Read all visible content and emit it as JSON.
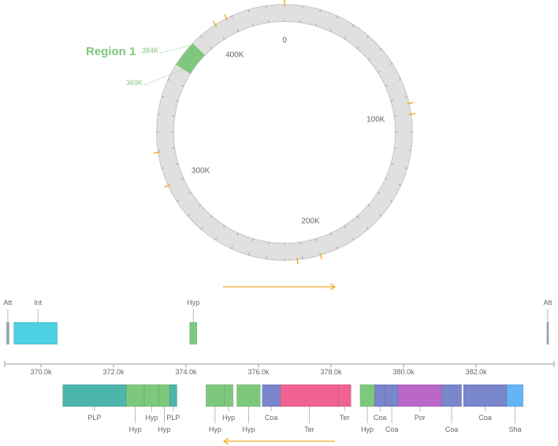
{
  "circular_map": {
    "ring_color": "#e0e0e0",
    "ring_stroke": "#bbbbbb",
    "tick_color": "#999999",
    "orange_tick_color": "#f5a623",
    "total_k": 440,
    "labels": [
      {
        "text": "0",
        "k": 0
      },
      {
        "text": "100K",
        "k": 100
      },
      {
        "text": "200K",
        "k": 200
      },
      {
        "text": "300K",
        "k": 300
      },
      {
        "text": "400K",
        "k": 400
      }
    ],
    "orange_ticks_k": [
      0,
      100,
      200,
      300,
      400,
      94,
      213,
      319,
      407
    ],
    "region": {
      "title": "Region 1",
      "color": "#7ec87e",
      "start_label": "369K",
      "end_label": "384K",
      "start_k": 369,
      "end_k": 384
    }
  },
  "strand_arrow_color": "#f5a623",
  "top_track": {
    "genes": [
      {
        "label": "Att",
        "start": 369.05,
        "end": 369.12,
        "color": "#8fa9b6"
      },
      {
        "label": "",
        "start": 369.25,
        "end": 370.45,
        "color": "#4dd0e1"
      },
      {
        "label": "Int",
        "start": 369.9,
        "end": 369.9,
        "color": "none"
      },
      {
        "label": "Hyp",
        "start": 374.1,
        "end": 374.3,
        "color": "#7ec87e"
      },
      {
        "label": "Att",
        "start": 383.95,
        "end": 384.0,
        "color": "#8fa9b6"
      }
    ]
  },
  "axis": {
    "domain": [
      369.0,
      384.15
    ],
    "ticks": [
      {
        "label": "370.0k",
        "v": 370.0
      },
      {
        "label": "372.0k",
        "v": 372.0
      },
      {
        "label": "374.0k",
        "v": 374.0
      },
      {
        "label": "376.0k",
        "v": 376.0
      },
      {
        "label": "378.0k",
        "v": 378.0
      },
      {
        "label": "380.0k",
        "v": 380.0
      },
      {
        "label": "382.0k",
        "v": 382.0
      }
    ]
  },
  "bottom_track": {
    "genes": [
      {
        "label": "PLP",
        "start": 370.6,
        "end": 372.35,
        "color": "#4db6ac",
        "row": 0
      },
      {
        "label": "Hyp",
        "start": 372.35,
        "end": 372.85,
        "color": "#7ec87e",
        "row": 1
      },
      {
        "label": "Hyp",
        "start": 372.85,
        "end": 373.25,
        "color": "#7ec87e",
        "row": 0
      },
      {
        "label": "Hyp",
        "start": 373.25,
        "end": 373.55,
        "color": "#7ec87e",
        "row": 1
      },
      {
        "label": "PLP",
        "start": 373.55,
        "end": 373.75,
        "color": "#4db6ac",
        "row": 0
      },
      {
        "label": "Hyp",
        "start": 374.55,
        "end": 375.05,
        "color": "#7ec87e",
        "row": 1
      },
      {
        "label": "Hyp",
        "start": 375.05,
        "end": 375.3,
        "color": "#7ec87e",
        "row": 0
      },
      {
        "label": "Hyp",
        "start": 375.4,
        "end": 376.05,
        "color": "#7ec87e",
        "row": 1
      },
      {
        "label": "Coa",
        "start": 376.1,
        "end": 376.6,
        "color": "#7986cb",
        "row": 0
      },
      {
        "label": "Ter",
        "start": 376.6,
        "end": 378.2,
        "color": "#f06292",
        "row": 1
      },
      {
        "label": "Ter",
        "start": 378.2,
        "end": 378.55,
        "color": "#f06292",
        "row": 0
      },
      {
        "label": "Hyp",
        "start": 378.8,
        "end": 379.2,
        "color": "#7ec87e",
        "row": 1
      },
      {
        "label": "Coa",
        "start": 379.2,
        "end": 379.5,
        "color": "#7986cb",
        "row": 0
      },
      {
        "label": "Coa",
        "start": 379.5,
        "end": 379.85,
        "color": "#7986cb",
        "row": 1
      },
      {
        "label": "Por",
        "start": 379.85,
        "end": 381.05,
        "color": "#ba68c8",
        "row": 0
      },
      {
        "label": "Coa",
        "start": 381.05,
        "end": 381.6,
        "color": "#7986cb",
        "row": 1
      },
      {
        "label": "Coa",
        "start": 381.65,
        "end": 382.85,
        "color": "#7986cb",
        "row": 0
      },
      {
        "label": "Sha",
        "start": 382.85,
        "end": 383.3,
        "color": "#64b5f6",
        "row": 1
      }
    ]
  }
}
